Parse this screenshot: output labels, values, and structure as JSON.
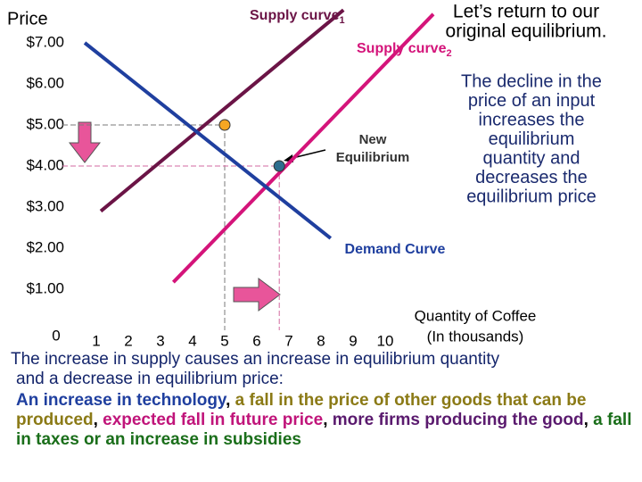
{
  "chart_data": {
    "type": "line",
    "ylabel": "Price",
    "xlabel": [
      "Quantity of Coffee",
      "(In thousands)"
    ],
    "xlim": [
      0,
      12
    ],
    "ylim": [
      0,
      8
    ],
    "xticks": [
      0,
      1,
      2,
      3,
      4,
      5,
      6,
      7,
      8,
      9,
      10
    ],
    "yticks": [
      {
        "value": 1,
        "label": "$1.00"
      },
      {
        "value": 2,
        "label": "$2.00"
      },
      {
        "value": 3,
        "label": "$3.00"
      },
      {
        "value": 4,
        "label": "$4.00"
      },
      {
        "value": 5,
        "label": "$5.00"
      },
      {
        "value": 6,
        "label": "$6.00"
      },
      {
        "value": 7,
        "label": "$7.00"
      }
    ],
    "series": [
      {
        "name": "Supply curve",
        "subscript": "1",
        "color": "#6b1446",
        "x": [
          1.14,
          8.7
        ],
        "values": [
          2.9,
          7.8
        ]
      },
      {
        "name": "Supply curve",
        "subscript": "2",
        "color": "#d4147a",
        "x": [
          3.4,
          11.5
        ],
        "values": [
          1.17,
          7.7
        ]
      },
      {
        "name": "Demand Curve",
        "color": "#1f3f9f",
        "x": [
          0.64,
          8.3
        ],
        "values": [
          7.0,
          2.24
        ]
      }
    ],
    "points": [
      {
        "x": 5,
        "y": 5,
        "color": "#f5a623",
        "guide": "#7a7a7a"
      },
      {
        "x": 6.7,
        "y": 4,
        "color": "#2e6e8e",
        "guide": "#d36aa0"
      }
    ],
    "annotations": {
      "return": [
        "Let’s return to our",
        "original equilibrium."
      ],
      "new_equilibrium": [
        "New",
        "Equilibrium"
      ],
      "explanation": [
        "The decline in the",
        "price of an input",
        "increases the",
        "equilibrium",
        "quantity and",
        "decreases the",
        "equilibrium price"
      ]
    }
  },
  "caption": {
    "lines": [
      "The increase in supply causes an increase in equilibrium quantity",
      "and a decrease in equilibrium price:"
    ],
    "factors": [
      {
        "text": "An increase in technology",
        "color": "#1f3f9f"
      },
      {
        "text": ", ",
        "color": "#000000"
      },
      {
        "text": "a fall in the price of other goods that can be produced",
        "color": "#8b7a16"
      },
      {
        "text": ", ",
        "color": "#000000"
      },
      {
        "text": "expected fall in future price",
        "color": "#c0147a"
      },
      {
        "text": ", ",
        "color": "#000000"
      },
      {
        "text": "more firms producing the good",
        "color": "#5a1a6e"
      },
      {
        "text": ", ",
        "color": "#000000"
      },
      {
        "text": "a fall in taxes or an increase in subsidies",
        "color": "#1a6e1a"
      }
    ]
  }
}
